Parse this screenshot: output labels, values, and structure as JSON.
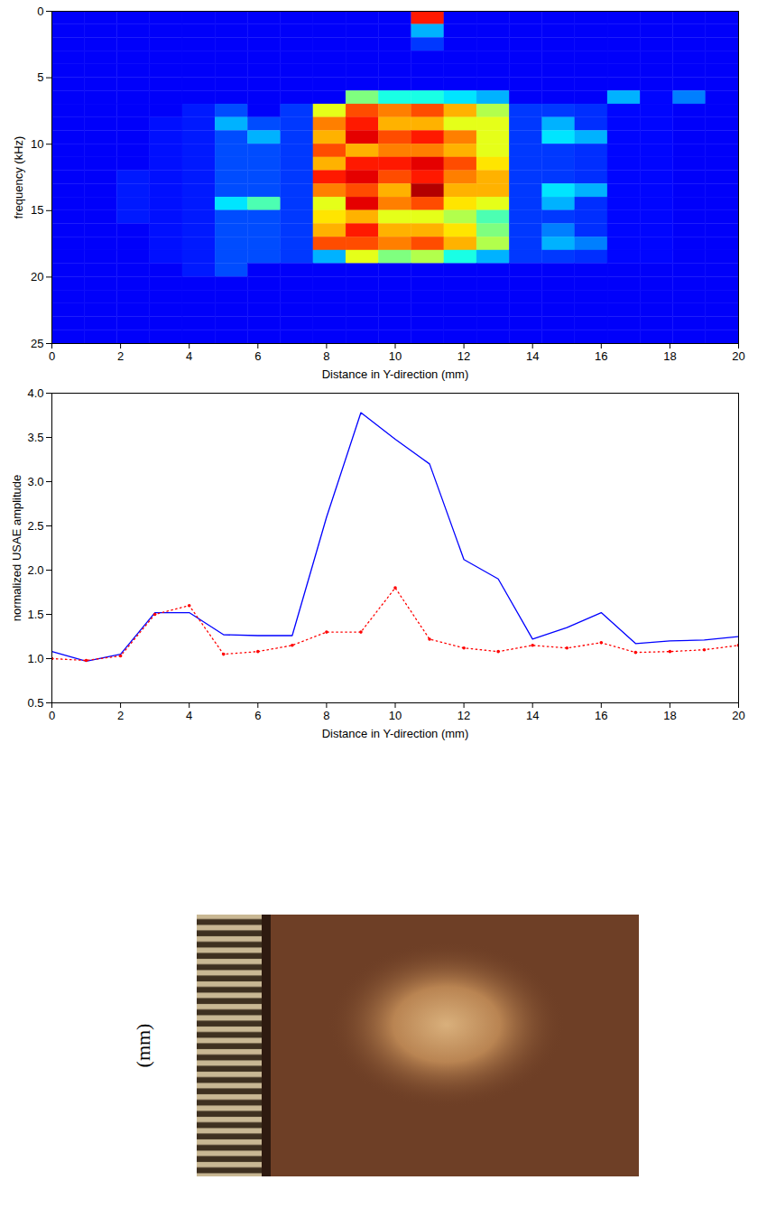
{
  "chart_data": [
    {
      "type": "heatmap",
      "xlabel": "Distance in Y-direction (mm)",
      "ylabel": "frequency (kHz)",
      "xlim": [
        0,
        20
      ],
      "xticks": [
        0,
        2,
        4,
        6,
        8,
        10,
        12,
        14,
        16,
        18,
        20
      ],
      "ylim": [
        0,
        25
      ],
      "yticks": [
        0,
        5,
        10,
        15,
        20,
        25
      ],
      "x_edges": [
        0,
        0.95,
        1.9,
        2.86,
        3.81,
        4.76,
        5.71,
        6.67,
        7.62,
        8.57,
        9.52,
        10.48,
        11.43,
        12.38,
        13.33,
        14.29,
        15.24,
        16.19,
        17.14,
        18.1,
        19.05,
        20
      ],
      "y_edges": [
        0,
        1,
        2,
        3,
        4,
        5,
        6,
        7,
        8,
        9,
        10,
        11,
        12,
        13,
        14,
        15,
        16,
        17,
        18,
        19,
        20,
        21,
        22,
        23,
        24,
        25
      ],
      "zlim": [
        0,
        1
      ],
      "z": [
        [
          0.12,
          0.12,
          0.12,
          0.12,
          0.12,
          0.12,
          0.12,
          0.12,
          0.12,
          0.12,
          0.12,
          0.12,
          0.12,
          0.12,
          0.12,
          0.12,
          0.12,
          0.12,
          0.12,
          0.12,
          0.12,
          0.12,
          0.12,
          0.12,
          0.12
        ],
        [
          0.12,
          0.12,
          0.12,
          0.12,
          0.12,
          0.12,
          0.12,
          0.12,
          0.12,
          0.12,
          0.12,
          0.12,
          0.12,
          0.12,
          0.12,
          0.12,
          0.12,
          0.12,
          0.12,
          0.12,
          0.12,
          0.12,
          0.12,
          0.12,
          0.12
        ],
        [
          0.12,
          0.12,
          0.12,
          0.12,
          0.12,
          0.12,
          0.12,
          0.12,
          0.12,
          0.12,
          0.12,
          0.12,
          0.15,
          0.15,
          0.15,
          0.15,
          0.12,
          0.12,
          0.12,
          0.12,
          0.12,
          0.12,
          0.12,
          0.12,
          0.12
        ],
        [
          0.12,
          0.12,
          0.12,
          0.12,
          0.12,
          0.12,
          0.12,
          0.12,
          0.14,
          0.14,
          0.14,
          0.14,
          0.14,
          0.14,
          0.14,
          0.14,
          0.14,
          0.14,
          0.14,
          0.12,
          0.12,
          0.12,
          0.12,
          0.12,
          0.12
        ],
        [
          0.12,
          0.12,
          0.12,
          0.12,
          0.12,
          0.12,
          0.12,
          0.15,
          0.15,
          0.15,
          0.15,
          0.15,
          0.15,
          0.15,
          0.15,
          0.15,
          0.15,
          0.15,
          0.15,
          0.15,
          0.12,
          0.12,
          0.12,
          0.12,
          0.12
        ],
        [
          0.12,
          0.12,
          0.12,
          0.12,
          0.12,
          0.12,
          0.12,
          0.2,
          0.3,
          0.2,
          0.2,
          0.2,
          0.2,
          0.2,
          0.35,
          0.2,
          0.2,
          0.2,
          0.2,
          0.2,
          0.12,
          0.12,
          0.12,
          0.12,
          0.12
        ],
        [
          0.12,
          0.12,
          0.12,
          0.12,
          0.12,
          0.12,
          0.12,
          0.12,
          0.2,
          0.3,
          0.2,
          0.2,
          0.2,
          0.2,
          0.45,
          0.2,
          0.2,
          0.2,
          0.2,
          0.12,
          0.12,
          0.12,
          0.12,
          0.12,
          0.12
        ],
        [
          0.12,
          0.12,
          0.12,
          0.12,
          0.12,
          0.12,
          0.12,
          0.18,
          0.18,
          0.18,
          0.18,
          0.18,
          0.18,
          0.18,
          0.18,
          0.18,
          0.18,
          0.18,
          0.18,
          0.12,
          0.12,
          0.12,
          0.12,
          0.12,
          0.12
        ],
        [
          0.12,
          0.12,
          0.12,
          0.12,
          0.12,
          0.12,
          0.12,
          0.6,
          0.75,
          0.7,
          0.8,
          0.7,
          0.85,
          0.75,
          0.6,
          0.65,
          0.7,
          0.8,
          0.3,
          0.12,
          0.12,
          0.12,
          0.12,
          0.12,
          0.12
        ],
        [
          0.12,
          0.12,
          0.12,
          0.12,
          0.12,
          0.12,
          0.5,
          0.8,
          0.85,
          0.9,
          0.7,
          0.85,
          0.9,
          0.8,
          0.9,
          0.7,
          0.85,
          0.8,
          0.6,
          0.12,
          0.12,
          0.12,
          0.12,
          0.12,
          0.12
        ],
        [
          0.12,
          0.12,
          0.12,
          0.12,
          0.12,
          0.12,
          0.4,
          0.75,
          0.7,
          0.8,
          0.75,
          0.85,
          0.8,
          0.7,
          0.75,
          0.6,
          0.7,
          0.75,
          0.5,
          0.12,
          0.12,
          0.12,
          0.12,
          0.12,
          0.12
        ],
        [
          0.85,
          0.3,
          0.18,
          0.12,
          0.12,
          0.12,
          0.4,
          0.8,
          0.7,
          0.85,
          0.75,
          0.9,
          0.85,
          0.95,
          0.8,
          0.6,
          0.7,
          0.8,
          0.55,
          0.12,
          0.12,
          0.12,
          0.12,
          0.12,
          0.12
        ],
        [
          0.12,
          0.12,
          0.12,
          0.12,
          0.12,
          0.12,
          0.35,
          0.7,
          0.6,
          0.75,
          0.7,
          0.8,
          0.75,
          0.7,
          0.65,
          0.55,
          0.65,
          0.7,
          0.4,
          0.12,
          0.12,
          0.12,
          0.12,
          0.12,
          0.12
        ],
        [
          0.12,
          0.12,
          0.12,
          0.12,
          0.12,
          0.12,
          0.3,
          0.55,
          0.6,
          0.6,
          0.6,
          0.65,
          0.7,
          0.7,
          0.6,
          0.45,
          0.5,
          0.55,
          0.3,
          0.12,
          0.12,
          0.12,
          0.12,
          0.12,
          0.12
        ],
        [
          0.12,
          0.12,
          0.12,
          0.12,
          0.12,
          0.12,
          0.12,
          0.18,
          0.18,
          0.18,
          0.18,
          0.18,
          0.18,
          0.18,
          0.18,
          0.18,
          0.18,
          0.18,
          0.18,
          0.12,
          0.12,
          0.12,
          0.12,
          0.12,
          0.12
        ],
        [
          0.12,
          0.12,
          0.12,
          0.12,
          0.12,
          0.12,
          0.12,
          0.18,
          0.3,
          0.35,
          0.18,
          0.18,
          0.18,
          0.35,
          0.3,
          0.18,
          0.25,
          0.3,
          0.18,
          0.12,
          0.12,
          0.12,
          0.12,
          0.12,
          0.12
        ],
        [
          0.12,
          0.12,
          0.12,
          0.12,
          0.12,
          0.12,
          0.12,
          0.17,
          0.17,
          0.3,
          0.17,
          0.17,
          0.17,
          0.3,
          0.17,
          0.17,
          0.17,
          0.25,
          0.17,
          0.12,
          0.12,
          0.12,
          0.12,
          0.12,
          0.12
        ],
        [
          0.12,
          0.12,
          0.12,
          0.12,
          0.12,
          0.12,
          0.3,
          0.13,
          0.13,
          0.13,
          0.13,
          0.13,
          0.13,
          0.13,
          0.13,
          0.13,
          0.13,
          0.13,
          0.13,
          0.12,
          0.12,
          0.12,
          0.12,
          0.12,
          0.12
        ],
        [
          0.12,
          0.12,
          0.12,
          0.12,
          0.12,
          0.12,
          0.13,
          0.13,
          0.13,
          0.13,
          0.13,
          0.13,
          0.13,
          0.13,
          0.13,
          0.13,
          0.13,
          0.13,
          0.13,
          0.12,
          0.12,
          0.12,
          0.12,
          0.12,
          0.12
        ],
        [
          0.12,
          0.12,
          0.12,
          0.12,
          0.12,
          0.12,
          0.25,
          0.12,
          0.12,
          0.12,
          0.12,
          0.12,
          0.12,
          0.12,
          0.12,
          0.12,
          0.12,
          0.12,
          0.12,
          0.12,
          0.12,
          0.12,
          0.12,
          0.12,
          0.12
        ],
        [
          0.12,
          0.12,
          0.12,
          0.12,
          0.12,
          0.12,
          0.12,
          0.12,
          0.12,
          0.12,
          0.12,
          0.12,
          0.12,
          0.12,
          0.12,
          0.12,
          0.12,
          0.12,
          0.12,
          0.12,
          0.12,
          0.12,
          0.12,
          0.12,
          0.12
        ]
      ]
    },
    {
      "type": "line",
      "xlabel": "Distance in Y-direction (mm)",
      "ylabel": "normalized USAE amplitude",
      "x": [
        0,
        1,
        2,
        3,
        4,
        5,
        6,
        7,
        8,
        9,
        10,
        11,
        12,
        13,
        14,
        15,
        16,
        17,
        18,
        19,
        20
      ],
      "xlim": [
        0,
        20
      ],
      "xticks": [
        0,
        2,
        4,
        6,
        8,
        10,
        12,
        14,
        16,
        18,
        20
      ],
      "ylim": [
        0.5,
        4
      ],
      "yticks": [
        0.5,
        1,
        1.5,
        2,
        2.5,
        3,
        3.5,
        4
      ],
      "series": [
        {
          "color": "#0000ff",
          "line_style": "solid",
          "values": [
            1.08,
            0.97,
            1.05,
            1.52,
            1.52,
            1.27,
            1.26,
            1.26,
            2.6,
            3.78,
            3.48,
            3.2,
            2.12,
            1.9,
            1.22,
            1.35,
            1.52,
            1.17,
            1.2,
            1.21,
            1.25
          ]
        },
        {
          "color": "#ff0000",
          "line_style": "dotted",
          "marker": "dot",
          "values": [
            1.0,
            0.98,
            1.03,
            1.5,
            1.6,
            1.05,
            1.08,
            1.15,
            1.3,
            1.3,
            1.8,
            1.22,
            1.12,
            1.08,
            1.15,
            1.12,
            1.18,
            1.07,
            1.08,
            1.1,
            1.15
          ]
        }
      ]
    }
  ],
  "image": {
    "label": "(mm)"
  }
}
